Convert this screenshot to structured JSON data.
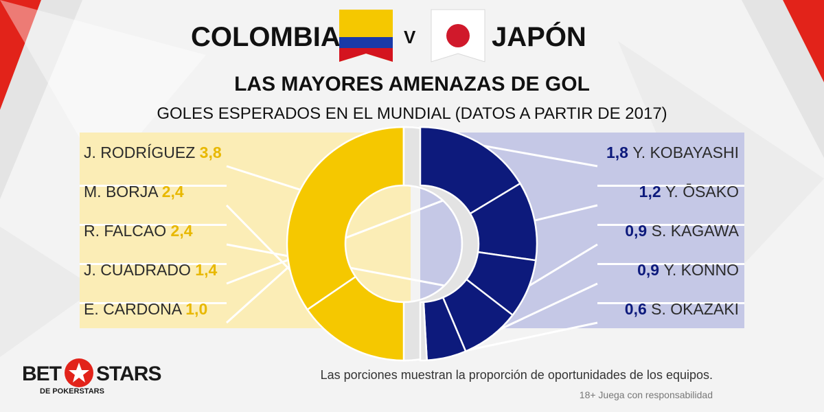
{
  "header": {
    "team_left": "COLOMBIA",
    "versus": "V",
    "team_right": "JAPÓN",
    "subtitle": "LAS MAYORES AMENAZAS DE GOL",
    "description": "GOLES ESPERADOS EN EL MUNDIAL (DATOS A PARTIR DE 2017)"
  },
  "colors": {
    "colombia_accent": "#f5c800",
    "colombia_panel": "#fbedb6",
    "japan_accent": "#0d1a7c",
    "japan_panel": "#c5c8e6",
    "remainder": "#e3e3e3",
    "brand_red": "#e2231a"
  },
  "chart_data": [
    {
      "type": "pie",
      "team": "COLOMBIA",
      "categories": [
        "J. RODRÍGUEZ",
        "M. BORJA",
        "R. FALCAO",
        "J. CUADRADO",
        "E. CARDONA"
      ],
      "values": [
        3.8,
        2.4,
        2.4,
        1.4,
        1.0
      ],
      "value_labels": [
        "3,8",
        "2,4",
        "2,4",
        "1,4",
        "1,0"
      ]
    },
    {
      "type": "pie",
      "team": "JAPÓN",
      "categories": [
        "Y. KOBAYASHI",
        "Y. ŌSAKO",
        "S. KAGAWA",
        "Y. KONNO",
        "S. OKAZAKI"
      ],
      "values": [
        1.8,
        1.2,
        0.9,
        0.9,
        0.6
      ],
      "value_labels": [
        "1,8",
        "1,2",
        "0,9",
        "0,9",
        "0,6"
      ]
    }
  ],
  "footer": {
    "brand_bet": "BET",
    "brand_stars": "STARS",
    "brand_sub": "DE POKERSTARS",
    "note": "Las porciones muestran la proporción de oportunidades de los equipos.",
    "responsible": "18+ Juega con responsabilidad"
  }
}
